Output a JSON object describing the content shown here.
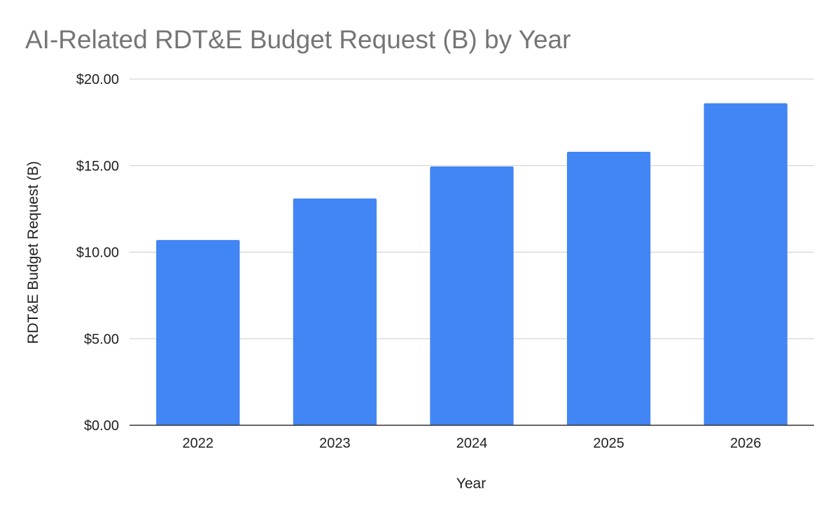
{
  "chart_data": {
    "type": "bar",
    "title": "AI-Related RDT&E Budget Request (B) by Year",
    "xlabel": "Year",
    "ylabel": "RDT&E Budget Request (B)",
    "categories": [
      "2022",
      "2023",
      "2024",
      "2025",
      "2026"
    ],
    "series": [
      {
        "values": [
          10.7,
          13.1,
          14.95,
          15.8,
          18.6
        ],
        "color": "#4285f4"
      }
    ],
    "ylim": [
      0,
      20
    ],
    "yticks": [
      0,
      5,
      10,
      15,
      20
    ],
    "ytick_labels": [
      "$0.00",
      "$5.00",
      "$10.00",
      "$15.00",
      "$20.00"
    ],
    "grid": true,
    "legend": "none"
  }
}
